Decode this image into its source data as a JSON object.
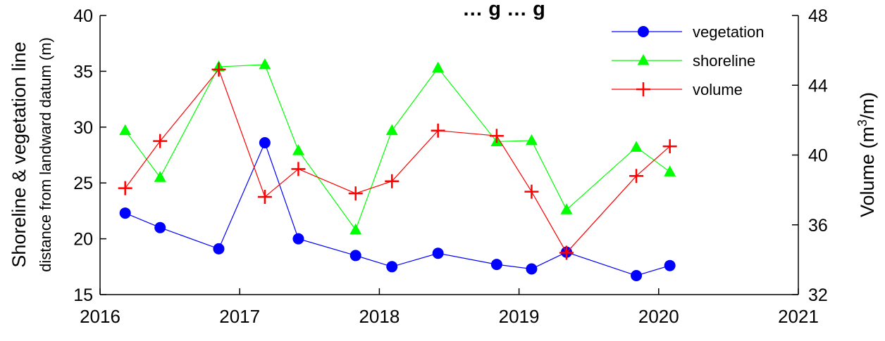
{
  "chart_data": {
    "type": "line",
    "title": "… g   … g",
    "xlabel": "",
    "x_ticks": [
      2016,
      2017,
      2018,
      2019,
      2020,
      2021
    ],
    "xlim": [
      2016,
      2021
    ],
    "left_axis": {
      "label": "Shoreline & vegetation line",
      "sublabel": "distance from landward datum (m)",
      "ylim": [
        15,
        40
      ],
      "ticks": [
        15,
        20,
        25,
        30,
        35,
        40
      ]
    },
    "right_axis": {
      "label_main": "Volume (m",
      "label_sup": "3",
      "label_end": "/m)",
      "ylim": [
        32,
        48
      ],
      "ticks": [
        32,
        36,
        40,
        44,
        48
      ]
    },
    "legend_position": "top-right",
    "series": [
      {
        "name": "vegetation",
        "axis": "left",
        "color": "#0000ff",
        "marker": "circle",
        "points": [
          [
            2016.18,
            22.3
          ],
          [
            2016.43,
            21.0
          ],
          [
            2016.85,
            19.1
          ],
          [
            2017.18,
            28.6
          ],
          [
            2017.42,
            20.0
          ],
          [
            2017.83,
            18.5
          ],
          [
            2018.09,
            17.5
          ],
          [
            2018.42,
            18.7
          ],
          [
            2018.84,
            17.7
          ],
          [
            2019.09,
            17.3
          ],
          [
            2019.34,
            18.8
          ],
          [
            2019.84,
            16.7
          ],
          [
            2020.08,
            17.6
          ]
        ]
      },
      {
        "name": "shoreline",
        "axis": "left",
        "color": "#00ff00",
        "marker": "triangle",
        "points": [
          [
            2016.18,
            29.7
          ],
          [
            2016.43,
            25.5
          ],
          [
            2016.85,
            35.4
          ],
          [
            2017.18,
            35.6
          ],
          [
            2017.42,
            27.9
          ],
          [
            2017.83,
            20.8
          ],
          [
            2018.09,
            29.7
          ],
          [
            2018.42,
            35.3
          ],
          [
            2018.84,
            28.7
          ],
          [
            2019.09,
            28.8
          ],
          [
            2019.34,
            22.6
          ],
          [
            2019.84,
            28.2
          ],
          [
            2020.08,
            26.0
          ]
        ]
      },
      {
        "name": "volume",
        "axis": "right",
        "color": "#ff0000",
        "marker": "plus",
        "points": [
          [
            2016.18,
            38.1
          ],
          [
            2016.43,
            40.8
          ],
          [
            2016.85,
            44.9
          ],
          [
            2017.18,
            37.6
          ],
          [
            2017.42,
            39.2
          ],
          [
            2017.83,
            37.8
          ],
          [
            2018.09,
            38.5
          ],
          [
            2018.42,
            41.4
          ],
          [
            2018.84,
            41.1
          ],
          [
            2019.09,
            37.9
          ],
          [
            2019.34,
            34.4
          ],
          [
            2019.84,
            38.8
          ],
          [
            2020.08,
            40.5
          ]
        ]
      }
    ]
  }
}
